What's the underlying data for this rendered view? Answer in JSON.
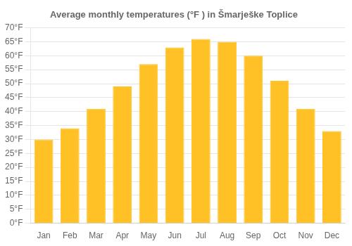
{
  "chart_data": {
    "type": "bar",
    "title": "Average monthly temperatures (°F ) in Šmarješke Toplice",
    "categories": [
      "Jan",
      "Feb",
      "Mar",
      "Apr",
      "May",
      "Jun",
      "Jul",
      "Aug",
      "Sep",
      "Oct",
      "Nov",
      "Dec"
    ],
    "values": [
      30,
      34,
      41,
      49,
      57,
      63,
      66,
      65,
      60,
      51,
      41,
      33
    ],
    "color": "#FFC125",
    "ylim": [
      0,
      70
    ],
    "yticks": [
      {
        "value": 0,
        "label": "0°F"
      },
      {
        "value": 5,
        "label": "5°F"
      },
      {
        "value": 10,
        "label": "10°F"
      },
      {
        "value": 15,
        "label": "15°F"
      },
      {
        "value": 20,
        "label": "20°F"
      },
      {
        "value": 25,
        "label": "25°F"
      },
      {
        "value": 30,
        "label": "30°F"
      },
      {
        "value": 35,
        "label": "35°F"
      },
      {
        "value": 40,
        "label": "40°F"
      },
      {
        "value": 45,
        "label": "45°F"
      },
      {
        "value": 50,
        "label": "50°F"
      },
      {
        "value": 55,
        "label": "55°F"
      },
      {
        "value": 60,
        "label": "60°F"
      },
      {
        "value": 65,
        "label": "65°F"
      },
      {
        "value": 70,
        "label": "70°F"
      }
    ],
    "grid": true
  }
}
